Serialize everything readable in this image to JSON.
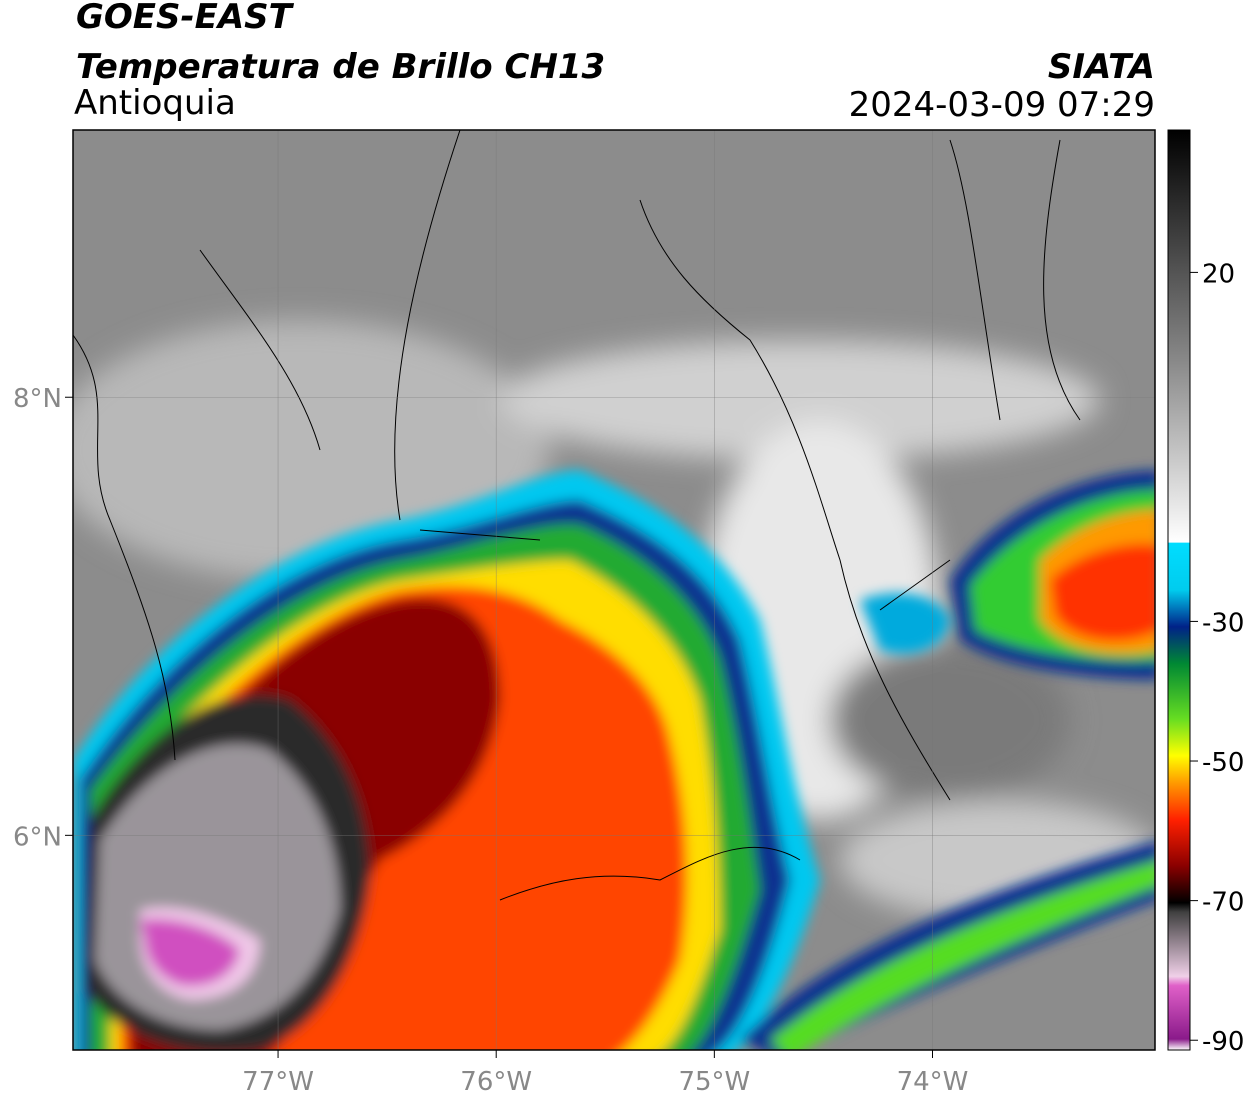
{
  "header": {
    "title": "GOES-EAST",
    "subtitle": "Temperatura de Brillo CH13",
    "region": "Antioquia",
    "source": "SIATA",
    "timestamp": "2024-03-09 07:29"
  },
  "map": {
    "xlim": [
      -77.94,
      -72.98
    ],
    "ylim": [
      5.02,
      9.22
    ],
    "xticks": [
      {
        "value": -77,
        "label": "77°W"
      },
      {
        "value": -76,
        "label": "76°W"
      },
      {
        "value": -75,
        "label": "75°W"
      },
      {
        "value": -74,
        "label": "74°W"
      }
    ],
    "yticks": [
      {
        "value": 8,
        "label": "8°N"
      },
      {
        "value": 6,
        "label": "6°N"
      }
    ]
  },
  "colorbar": {
    "clim": [
      -91.4,
      40.4
    ],
    "ticks": [
      20,
      -30,
      -50,
      -70,
      -90
    ]
  }
}
